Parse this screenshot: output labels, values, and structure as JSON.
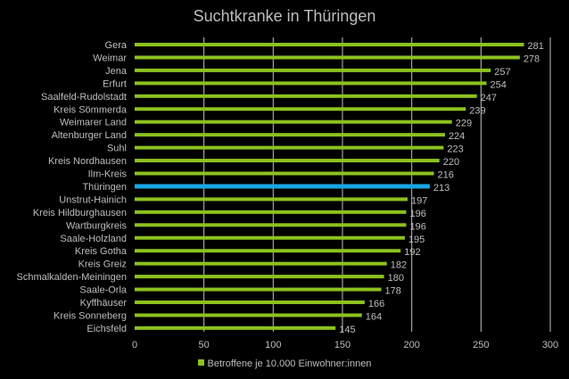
{
  "chart_data": {
    "type": "bar",
    "orientation": "horizontal",
    "title": "Suchtkranke in Thüringen",
    "xlabel": "",
    "ylabel": "",
    "xlim": [
      0,
      300
    ],
    "xticks": [
      0,
      50,
      100,
      150,
      200,
      250,
      300
    ],
    "grid": true,
    "legend_position": "bottom",
    "categories": [
      "Gera",
      "Weimar",
      "Jena",
      "Erfurt",
      "Saalfeld-Rudolstadt",
      "Kreis Sömmerda",
      "Weimarer Land",
      "Altenburger Land",
      "Suhl",
      "Kreis Nordhausen",
      "Ilm-Kreis",
      "Thüringen",
      "Unstrut-Hainich",
      "Kreis Hildburghausen",
      "Wartburgkreis",
      "Saale-Holzland",
      "Kreis Gotha",
      "Kreis Greiz",
      "Schmalkalden-Meiningen",
      "Saale-Orla",
      "Kyffhäuser",
      "Kreis Sonneberg",
      "Eichsfeld"
    ],
    "series": [
      {
        "name": "Betroffene je 10.000 Einwohner:innen",
        "values": [
          281,
          278,
          257,
          254,
          247,
          239,
          229,
          224,
          223,
          220,
          216,
          213,
          197,
          196,
          196,
          195,
          192,
          182,
          180,
          178,
          166,
          164,
          145
        ]
      }
    ],
    "highlight_category": "Thüringen",
    "colors": {
      "bar": "#8cc21e",
      "highlight": "#1aa6e4",
      "text": "#bdbdbd",
      "grid": "#bfbfbf",
      "background": "#000000"
    }
  }
}
